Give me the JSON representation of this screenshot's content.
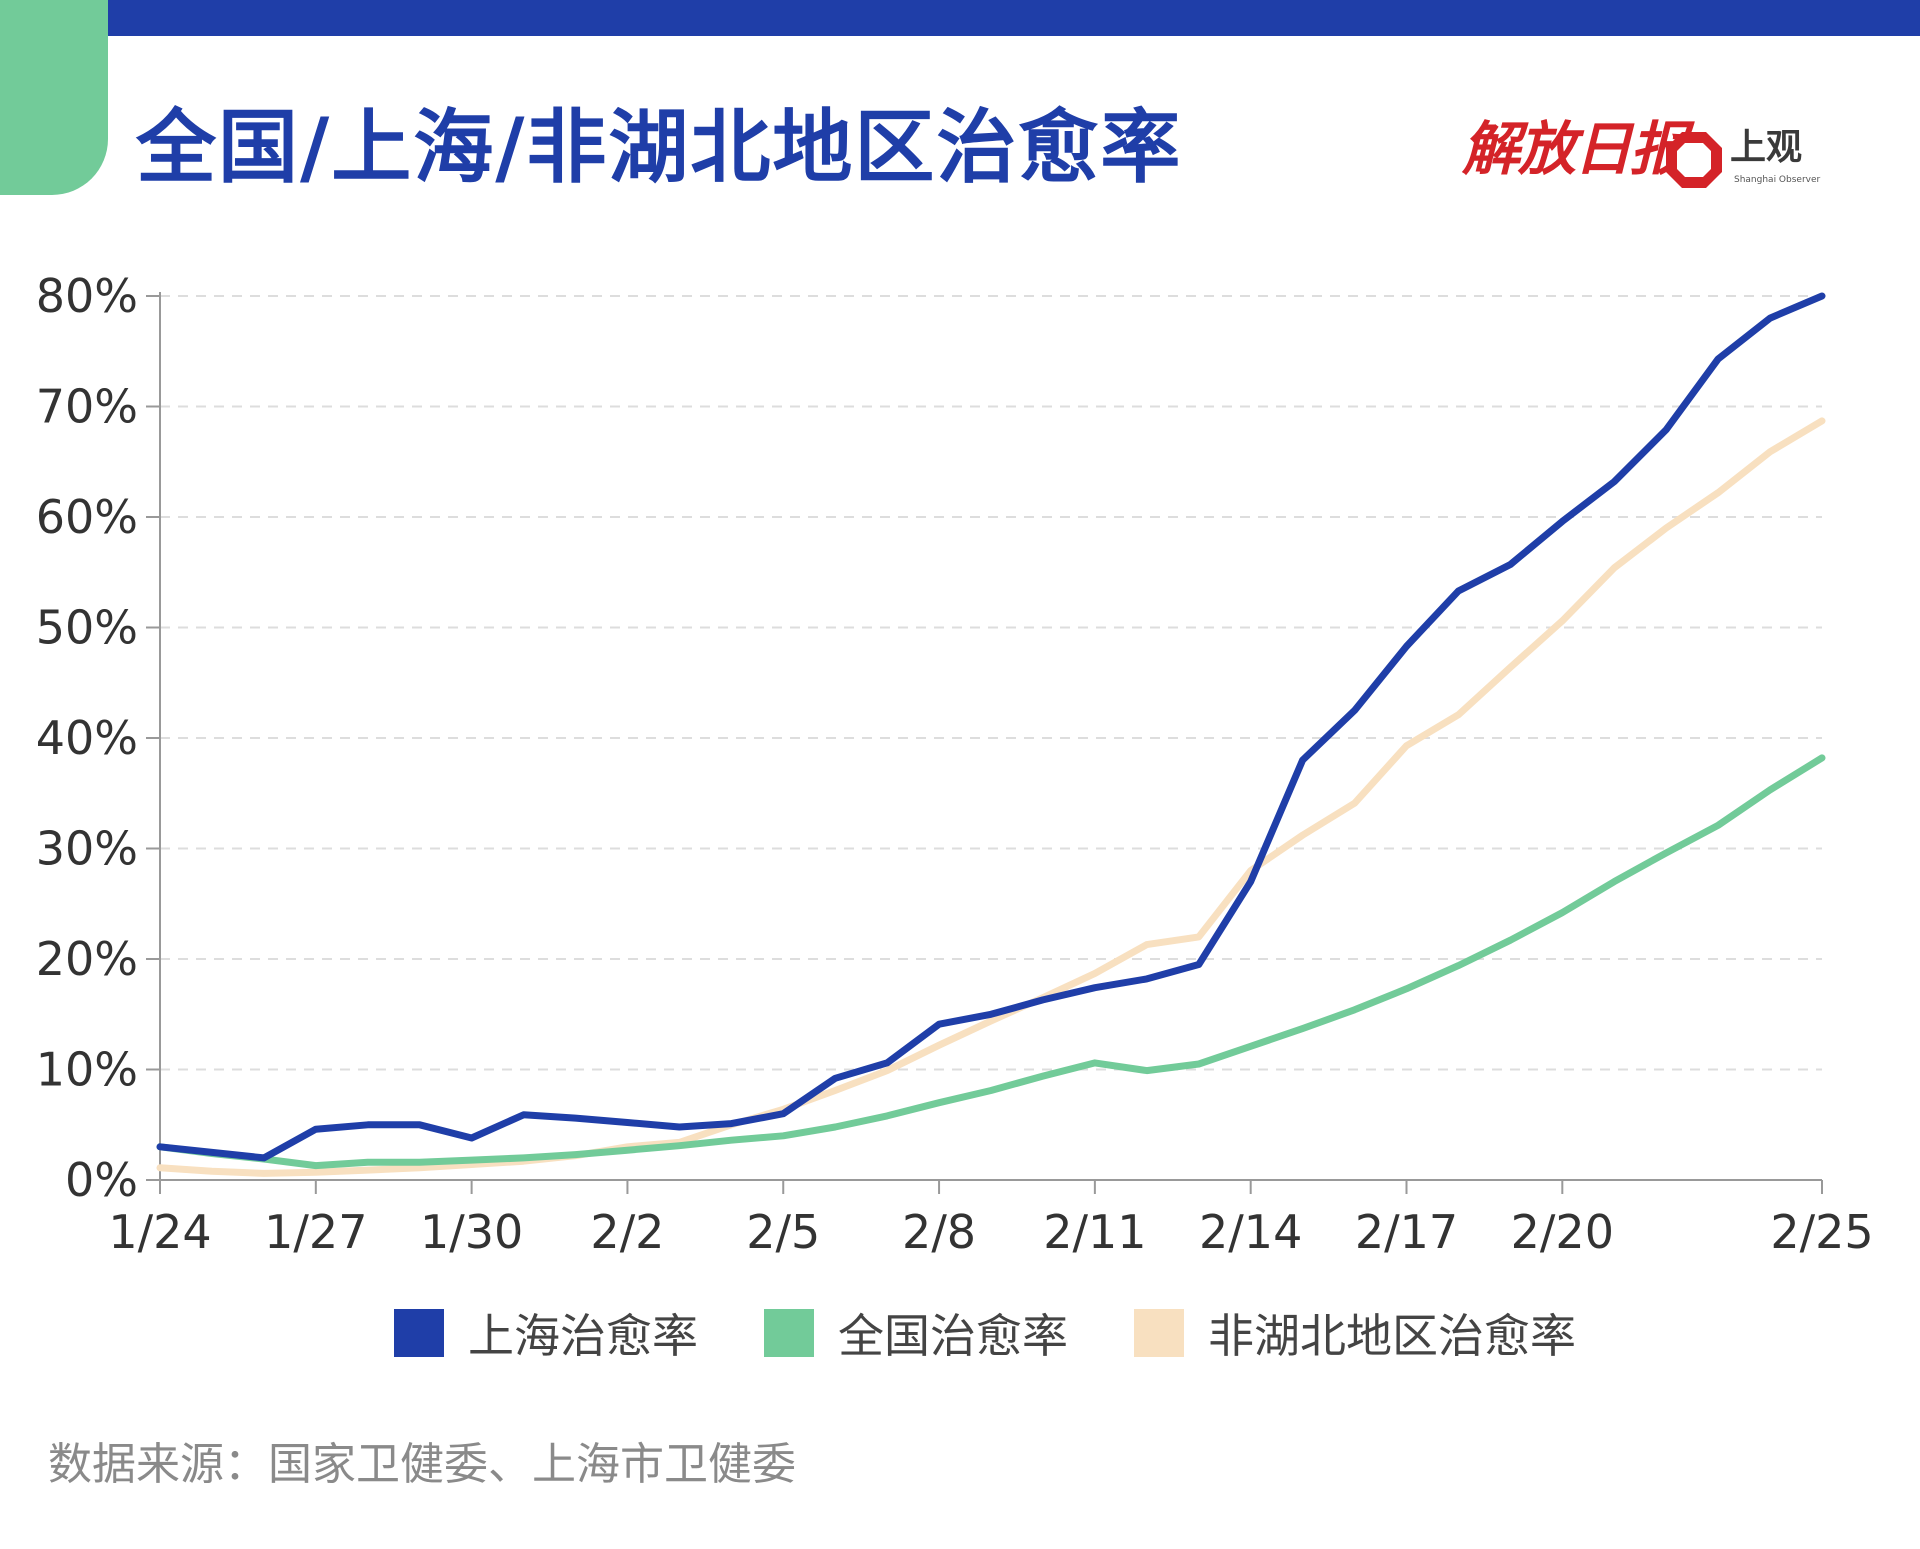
{
  "title": "全国/上海/非湖北地区治愈率",
  "brands": {
    "jiefang": "解放日报",
    "shangguan_cn": "上观",
    "shangguan_en": "Shanghai Observer"
  },
  "colors": {
    "title": "#1f3ea8",
    "top_bar": "#1f3ea8",
    "corner_tab": "#72cb99",
    "shanghai": "#1f3ea8",
    "national": "#72cb99",
    "non_hubei": "#f8e0c0",
    "axis": "#999999",
    "grid": "#dddddd",
    "tick_text": "#333333",
    "logo_red": "#d42328"
  },
  "source": "数据来源：国家卫健委、上海市卫健委",
  "chart_data": {
    "type": "line",
    "x": [
      "1/24",
      "1/25",
      "1/26",
      "1/27",
      "1/28",
      "1/29",
      "1/30",
      "1/31",
      "2/1",
      "2/2",
      "2/3",
      "2/4",
      "2/5",
      "2/6",
      "2/7",
      "2/8",
      "2/9",
      "2/10",
      "2/11",
      "2/12",
      "2/13",
      "2/14",
      "2/15",
      "2/16",
      "2/17",
      "2/18",
      "2/19",
      "2/20",
      "2/21",
      "2/22",
      "2/23",
      "2/24",
      "2/25"
    ],
    "x_ticks": [
      "1/24",
      "1/27",
      "1/30",
      "2/2",
      "2/5",
      "2/8",
      "2/11",
      "2/14",
      "2/17",
      "2/20",
      "2/25"
    ],
    "y_ticks": [
      "0%",
      "10%",
      "20%",
      "30%",
      "40%",
      "50%",
      "60%",
      "70%",
      "80%"
    ],
    "ylim": [
      0,
      80
    ],
    "grid": "horizontal dashed",
    "legend_position": "bottom",
    "series": [
      {
        "name": "上海治愈率",
        "color": "#1f3ea8",
        "values": [
          3.0,
          null,
          2.0,
          4.6,
          5.0,
          5.0,
          3.8,
          5.9,
          5.6,
          5.2,
          4.8,
          5.1,
          6.0,
          9.2,
          10.6,
          14.1,
          15.0,
          16.3,
          17.4,
          18.2,
          19.5,
          27.0,
          38.0,
          42.5,
          48.3,
          53.3,
          55.7,
          59.6,
          63.2,
          67.9,
          74.3,
          78.0,
          80.0
        ]
      },
      {
        "name": "全国治愈率",
        "color": "#72cb99",
        "values": [
          3.0,
          2.4,
          1.9,
          1.3,
          1.6,
          1.6,
          1.8,
          2.0,
          2.3,
          2.7,
          3.1,
          3.6,
          4.0,
          4.8,
          5.8,
          7.0,
          8.1,
          9.4,
          10.6,
          9.9,
          10.5,
          12.1,
          13.7,
          15.4,
          17.3,
          19.4,
          21.7,
          24.2,
          27.0,
          29.6,
          32.1,
          35.3,
          38.2
        ]
      },
      {
        "name": "非湖北地区治愈率",
        "color": "#f8e0c0",
        "values": [
          1.1,
          0.8,
          0.6,
          0.7,
          0.9,
          1.1,
          1.4,
          1.7,
          2.2,
          3.0,
          3.4,
          5.0,
          6.4,
          8.1,
          9.9,
          12.2,
          14.4,
          16.5,
          18.7,
          21.3,
          22.0,
          28.0,
          31.2,
          34.1,
          39.3,
          42.1,
          46.4,
          50.6,
          55.4,
          59.0,
          62.2,
          65.9,
          68.7
        ]
      }
    ]
  }
}
